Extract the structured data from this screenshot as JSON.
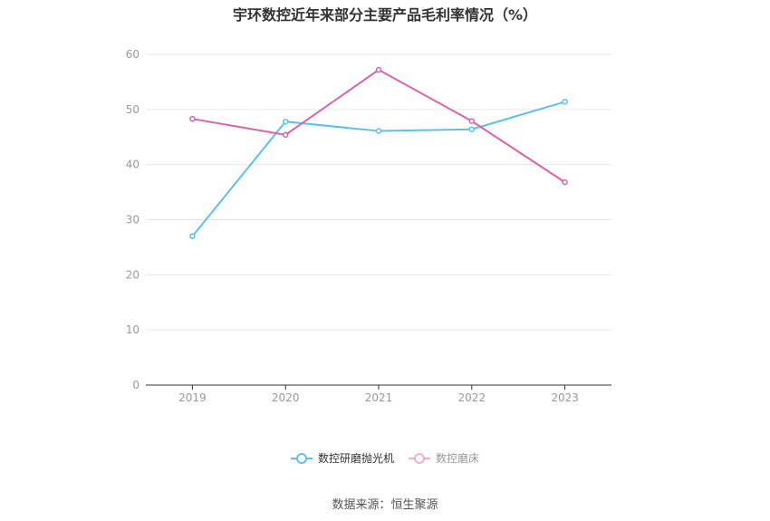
{
  "title": "宇环数控近年来部分主要产品毛利率情况（%）",
  "source": "数据来源：恒生聚源",
  "chart_data": {
    "type": "line",
    "categories": [
      "2019",
      "2020",
      "2021",
      "2022",
      "2023"
    ],
    "series": [
      {
        "name": "数控研磨抛光机",
        "color": "#5bc0eb",
        "values": [
          27.0,
          47.8,
          46.1,
          46.4,
          51.4
        ]
      },
      {
        "name": "数控磨床",
        "color": "#d964a8",
        "values": [
          48.3,
          45.4,
          57.2,
          47.9,
          36.8
        ]
      }
    ],
    "ylim": [
      0,
      60
    ],
    "yticks": [
      0,
      10,
      20,
      30,
      40,
      50,
      60
    ],
    "grid": true,
    "legend_position": "bottom",
    "legend_inactive_color": "#999999"
  }
}
